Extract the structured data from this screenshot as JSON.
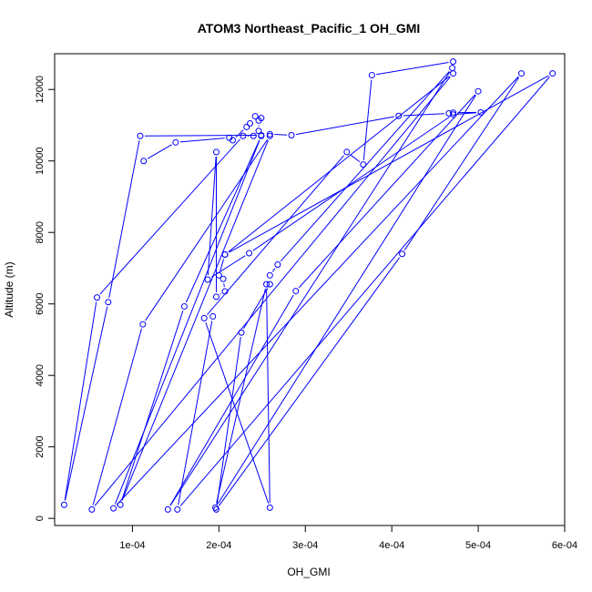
{
  "chart_data": {
    "type": "line",
    "title": "ATOM3 Northeast_Pacific_1 OH_GMI",
    "xlabel": "OH_GMI",
    "ylabel": "Altitude (m)",
    "xlim": [
      1e-05,
      0.0006
    ],
    "ylim": [
      -200,
      13000
    ],
    "x_ticks": [
      0.0001,
      0.0002,
      0.0003,
      0.0004,
      0.0005,
      0.0006
    ],
    "x_tick_labels": [
      "1e-04",
      "2e-04",
      "3e-04",
      "4e-04",
      "5e-04",
      "6e-04"
    ],
    "y_ticks": [
      0,
      2000,
      4000,
      6000,
      8000,
      10000,
      12000
    ],
    "y_tick_labels": [
      "0",
      "2000",
      "4000",
      "6000",
      "8000",
      "10000",
      "12000"
    ],
    "grid": false,
    "series_color": "#0000ff",
    "series": [
      {
        "style": "points-and-lines",
        "points": [
          [
            0.000113,
            10000
          ],
          [
            0.00015,
            10520
          ],
          [
            0.000212,
            10650
          ],
          [
            0.000216,
            10580
          ],
          [
            0.000232,
            10950
          ],
          [
            0.000236,
            11050
          ],
          [
            0.000242,
            11250
          ],
          [
            0.000249,
            11200
          ],
          [
            0.000246,
            11130
          ],
          [
            0.000246,
            10840
          ],
          [
            0.00024,
            10700
          ],
          [
            0.000228,
            10700
          ],
          [
            5.9e-05,
            6180
          ],
          [
            2.1e-05,
            380
          ],
          [
            7.2e-05,
            6050
          ],
          [
            0.000109,
            10700
          ],
          [
            0.000249,
            10720
          ],
          [
            0.000259,
            10750
          ],
          [
            0.000284,
            10720
          ],
          [
            0.000408,
            11260
          ],
          [
            0.000466,
            11330
          ],
          [
            0.000471,
            11350
          ],
          [
            0.000503,
            11360
          ],
          [
            0.000471,
            11300
          ],
          [
            0.000235,
            7420
          ],
          [
            0.000187,
            6680
          ],
          [
            0.000197,
            10250
          ],
          [
            0.000197,
            6200
          ],
          [
            0.000207,
            6350
          ],
          [
            0.000205,
            6700
          ],
          [
            0.0002,
            6800
          ],
          [
            0.000207,
            7380
          ],
          [
            0.000471,
            12450
          ],
          [
            5.3e-05,
            250
          ],
          [
            0.000112,
            5430
          ],
          [
            0.000259,
            10700
          ],
          [
            8.6e-05,
            380
          ],
          [
            0.00016,
            5930
          ],
          [
            0.000249,
            10700
          ],
          [
            7.8e-05,
            280
          ],
          [
            0.00055,
            12450
          ],
          [
            0.000412,
            7400
          ],
          [
            0.000197,
            250
          ],
          [
            0.000226,
            5200
          ],
          [
            0.000259,
            6550
          ],
          [
            0.000259,
            6800
          ],
          [
            0.000268,
            7100
          ],
          [
            0.00047,
            12600
          ],
          [
            0.000141,
            250
          ],
          [
            0.000289,
            6360
          ],
          [
            0.0005,
            11950
          ],
          [
            0.000196,
            300
          ],
          [
            0.000255,
            6550
          ],
          [
            0.000259,
            300
          ],
          [
            0.000183,
            5600
          ],
          [
            0.000348,
            10250
          ],
          [
            0.000367,
            9900
          ],
          [
            0.000377,
            12400
          ],
          [
            0.000471,
            12780
          ]
        ]
      },
      {
        "style": "points-and-lines",
        "points": [
          [
            0.000207,
            7380
          ],
          [
            0.000586,
            12450
          ],
          [
            0.000152,
            250
          ],
          [
            0.000193,
            5650
          ]
        ]
      }
    ]
  }
}
